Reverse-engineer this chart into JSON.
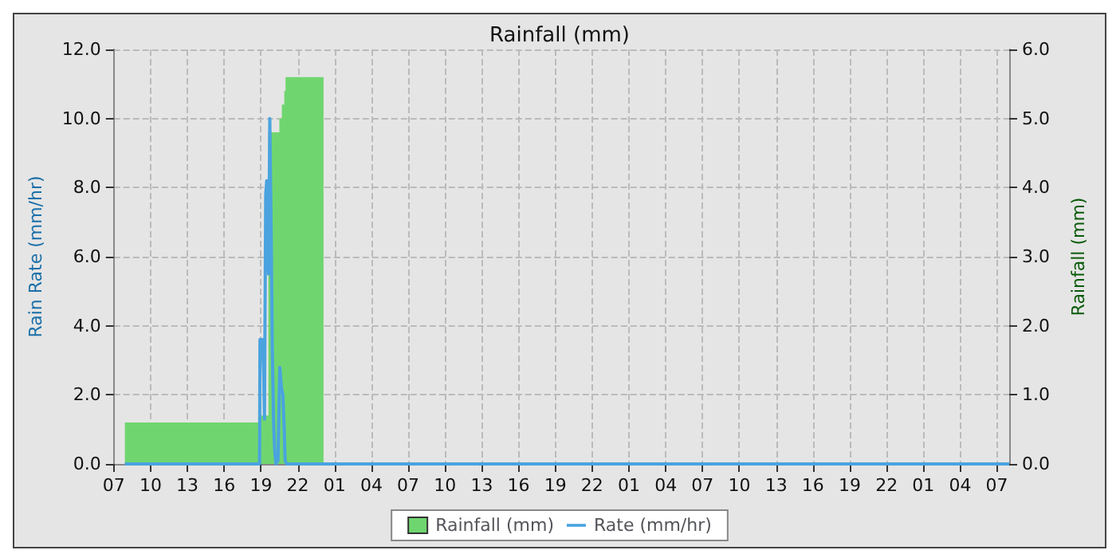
{
  "chart_data": {
    "type": "line",
    "title": "Rainfall (mm)",
    "ylabel": "Rain Rate (mm/hr)",
    "y2label": "Rainfall (mm)",
    "xlim": [
      "--01-01T07:00",
      "--01-04T08:00"
    ],
    "xticks": [
      {
        "value": "--01-01T07:00",
        "label": "07"
      },
      {
        "value": "--01-01T10:00",
        "label": "10"
      },
      {
        "value": "--01-01T13:00",
        "label": "13"
      },
      {
        "value": "--01-01T16:00",
        "label": "16"
      },
      {
        "value": "--01-01T19:00",
        "label": "19"
      },
      {
        "value": "--01-01T22:00",
        "label": "22"
      },
      {
        "value": "--01-02T01:00",
        "label": "01"
      },
      {
        "value": "--01-02T04:00",
        "label": "04"
      },
      {
        "value": "--01-02T07:00",
        "label": "07"
      },
      {
        "value": "--01-02T10:00",
        "label": "10"
      },
      {
        "value": "--01-02T13:00",
        "label": "13"
      },
      {
        "value": "--01-02T16:00",
        "label": "16"
      },
      {
        "value": "--01-02T19:00",
        "label": "19"
      },
      {
        "value": "--01-02T22:00",
        "label": "22"
      },
      {
        "value": "--01-03T01:00",
        "label": "01"
      },
      {
        "value": "--01-03T04:00",
        "label": "04"
      },
      {
        "value": "--01-03T07:00",
        "label": "07"
      },
      {
        "value": "--01-03T10:00",
        "label": "10"
      },
      {
        "value": "--01-03T13:00",
        "label": "13"
      },
      {
        "value": "--01-03T16:00",
        "label": "16"
      },
      {
        "value": "--01-03T19:00",
        "label": "19"
      },
      {
        "value": "--01-03T22:00",
        "label": "22"
      },
      {
        "value": "--01-04T01:00",
        "label": "01"
      },
      {
        "value": "--01-04T04:00",
        "label": "04"
      },
      {
        "value": "--01-04T07:00",
        "label": "07"
      }
    ],
    "ylim": [
      0,
      12
    ],
    "yticks": [
      {
        "value": 0,
        "label": "0.0"
      },
      {
        "value": 2,
        "label": "2.0"
      },
      {
        "value": 4,
        "label": "4.0"
      },
      {
        "value": 6,
        "label": "6.0"
      },
      {
        "value": 8,
        "label": "8.0"
      },
      {
        "value": 10,
        "label": "10.0"
      },
      {
        "value": 12,
        "label": "12.0"
      }
    ],
    "y2lim": [
      0,
      6
    ],
    "y2ticks": [
      {
        "value": 0,
        "label": "0.0"
      },
      {
        "value": 1,
        "label": "1.0"
      },
      {
        "value": 2,
        "label": "2.0"
      },
      {
        "value": 3,
        "label": "3.0"
      },
      {
        "value": 4,
        "label": "4.0"
      },
      {
        "value": 5,
        "label": "5.0"
      },
      {
        "value": 6,
        "label": "6.0"
      }
    ],
    "grid": true,
    "legend": "bottom",
    "marker": "none",
    "line_style": "solid",
    "series": [
      {
        "name": "Rainfall (mm)",
        "type": "area",
        "axis": "y2",
        "color": "#6fd66f",
        "x": [
          "--01-01T07:54",
          "--01-01T07:54",
          "--01-01T18:54",
          "--01-01T18:54",
          "--01-01T19:36",
          "--01-01T19:36",
          "--01-01T20:30",
          "--01-01T20:30",
          "--01-01T20:42",
          "--01-01T20:42",
          "--01-01T20:54",
          "--01-01T20:54",
          "--01-01T21:00",
          "--01-01T21:00",
          "--01-02T00:06",
          "--01-02T00:06"
        ],
        "values": [
          0,
          0.6,
          0.6,
          0.7,
          0.7,
          4.8,
          4.8,
          5.0,
          5.0,
          5.2,
          5.2,
          5.4,
          5.4,
          5.6,
          5.6,
          0
        ]
      },
      {
        "name": "Rate (mm/hr)",
        "color": "#4aa3df",
        "x": [
          "--01-01T07:54",
          "--01-01T18:53",
          "--01-01T18:55",
          "--01-01T19:07",
          "--01-01T19:13",
          "--01-01T19:17",
          "--01-01T19:23",
          "--01-01T19:28",
          "--01-01T19:37",
          "--01-01T19:43",
          "--01-01T19:50",
          "--01-01T19:55",
          "--01-01T20:02",
          "--01-01T20:07",
          "--01-01T20:13",
          "--01-01T20:23",
          "--01-01T20:32",
          "--01-01T20:40",
          "--01-01T20:47",
          "--01-01T20:53",
          "--01-01T20:58",
          "--01-01T21:05",
          "--01-04T08:00"
        ],
        "values": [
          0,
          0,
          3.6,
          3.6,
          2.6,
          1.3,
          7.8,
          8.2,
          5.5,
          10.0,
          6.6,
          3.4,
          1.1,
          0.4,
          0.0,
          0.1,
          2.8,
          2.2,
          2.0,
          1.1,
          0.1,
          0,
          0
        ]
      }
    ]
  }
}
